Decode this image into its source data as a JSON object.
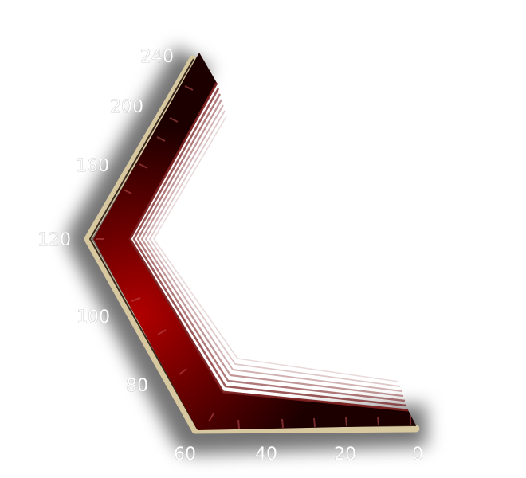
{
  "gauge": {
    "scale_labels": [
      {
        "key": "0",
        "text": "0"
      },
      {
        "key": "20",
        "text": "20"
      },
      {
        "key": "40",
        "text": "40"
      },
      {
        "key": "60",
        "text": "60"
      },
      {
        "key": "80",
        "text": "80"
      },
      {
        "key": "100",
        "text": "100"
      },
      {
        "key": "120",
        "text": "120"
      },
      {
        "key": "160",
        "text": "160"
      },
      {
        "key": "200",
        "text": "200"
      },
      {
        "key": "240",
        "text": "240"
      }
    ],
    "colors": {
      "band_center": "#b00000",
      "band_mid": "#6a0000",
      "band_edge": "#1c0000",
      "rim": "#d8c8a0",
      "edge_lines": "#7a2020",
      "label_fill": "#ffffff",
      "label_outline": "#a8a8a8"
    }
  }
}
